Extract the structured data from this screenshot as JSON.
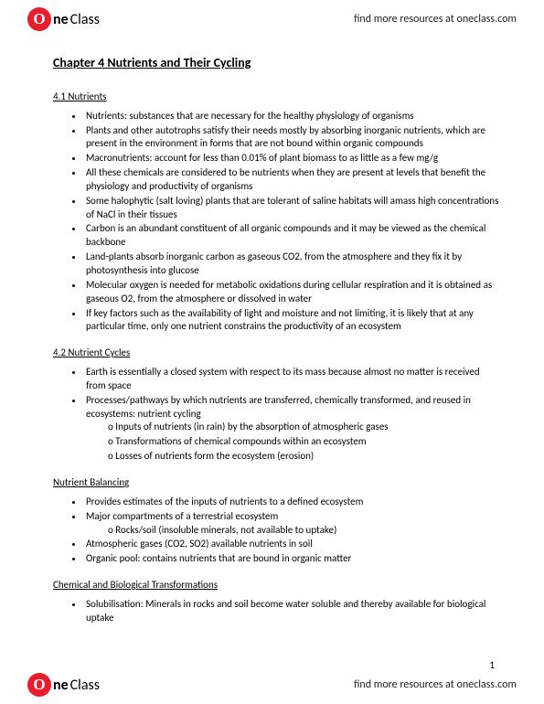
{
  "brand": {
    "circle": "O",
    "one": "ne",
    "class": "Class"
  },
  "find_more": "find more resources at oneclass.com",
  "title": "Chapter 4 Nutrients and Their Cycling",
  "s1": {
    "head": "4.1 Nutrients",
    "b1": "Nutrients: substances that are necessary for the healthy physiology of organisms",
    "b2": "Plants and other autotrophs satisfy their needs mostly by absorbing inorganic nutrients, which are present in the environment in forms that are not bound within organic compounds",
    "b3": "Macronutrients: account for less than 0.01% of plant biomass to as little as a few mg/g",
    "b4": "All these chemicals are considered to be nutrients when they are present at levels that benefit the physiology and productivity of organisms",
    "b5": "Some halophytic (salt loving) plants that are tolerant of saline habitats will amass high concentrations of NaCl in their tissues",
    "b6": "Carbon is an abundant constituent of all organic compounds and it may be viewed as the chemical backbone",
    "b7": "Land-plants absorb inorganic carbon as gaseous CO2, from the atmosphere and they fix it by photosynthesis into glucose",
    "b8": "Molecular oxygen is needed for metabolic oxidations during cellular respiration and it is obtained as gaseous O2, from the atmosphere or dissolved in water",
    "b9": "If key factors such as the availability of light and moisture and not limiting, it is likely that at any particular time, only one nutrient constrains the productivity of an ecosystem"
  },
  "s2": {
    "head": "4.2 Nutrient Cycles",
    "b1": "Earth is essentially a closed system with respect to its mass because almost no matter is received from space",
    "b2": "Processes/pathways by which nutrients are transferred, chemically transformed, and reused in ecosystems: nutrient cycling",
    "sub1": "Inputs of nutrients (in rain) by the absorption of atmospheric gases",
    "sub2": "Transformations of chemical compounds within an ecosystem",
    "sub3": "Losses of nutrients form the ecosystem (erosion)"
  },
  "s3": {
    "head": "Nutrient Balancing",
    "b1": "Provides estimates of the inputs of nutrients to a defined ecosystem",
    "b2": "Major compartments of a terrestrial ecosystem",
    "sub1": "Rocks/soil (insoluble minerals, not available to uptake)",
    "b3": "Atmospheric gases (CO2, SO2) available nutrients in soil",
    "b4": "Organic pool: contains nutrients that are bound in organic matter"
  },
  "s4": {
    "head": "Chemical and Biological Transformations",
    "b1": "Solubilisation: Minerals in rocks and soil become water soluble and thereby available for biological uptake"
  },
  "page_num": "1"
}
